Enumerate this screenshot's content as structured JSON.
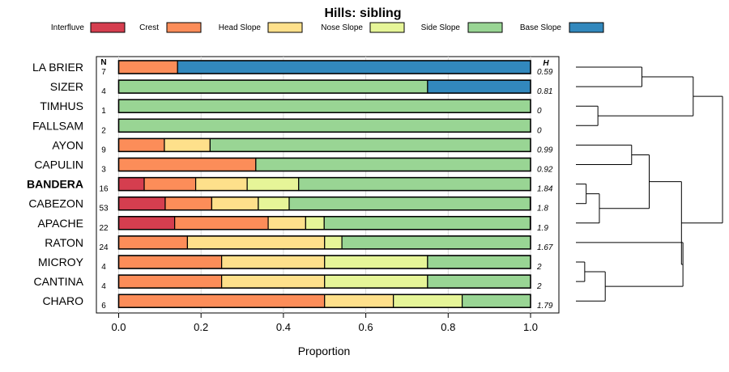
{
  "chart_data": {
    "type": "bar",
    "orientation": "horizontal",
    "stacked": true,
    "title": "Hills: sibling",
    "xlabel": "Proportion",
    "ylabel": "",
    "xlim": [
      0,
      1
    ],
    "x_ticks": [
      "0.0",
      "0.2",
      "0.4",
      "0.6",
      "0.8",
      "1.0"
    ],
    "n_header": "N",
    "h_header": "H",
    "legend_position": "top",
    "series": [
      {
        "name": "Interfluve",
        "color": "#D53E4F"
      },
      {
        "name": "Crest",
        "color": "#FC8D59"
      },
      {
        "name": "Head Slope",
        "color": "#FEE08B"
      },
      {
        "name": "Nose Slope",
        "color": "#E6F598"
      },
      {
        "name": "Side Slope",
        "color": "#99D594"
      },
      {
        "name": "Base Slope",
        "color": "#3288BD"
      }
    ],
    "rows": [
      {
        "label": "LA BRIER",
        "bold": false,
        "n": "7",
        "h": "0.59",
        "values": [
          0,
          0.143,
          0,
          0,
          0,
          0.857
        ]
      },
      {
        "label": "SIZER",
        "bold": false,
        "n": "4",
        "h": "0.81",
        "values": [
          0,
          0,
          0,
          0,
          0.75,
          0.25
        ]
      },
      {
        "label": "TIMHUS",
        "bold": false,
        "n": "1",
        "h": "0",
        "values": [
          0,
          0,
          0,
          0,
          1,
          0
        ]
      },
      {
        "label": "FALLSAM",
        "bold": false,
        "n": "2",
        "h": "0",
        "values": [
          0,
          0,
          0,
          0,
          1,
          0
        ]
      },
      {
        "label": "AYON",
        "bold": false,
        "n": "9",
        "h": "0.99",
        "values": [
          0,
          0.111,
          0.111,
          0,
          0.778,
          0
        ]
      },
      {
        "label": "CAPULIN",
        "bold": false,
        "n": "3",
        "h": "0.92",
        "values": [
          0,
          0.333,
          0,
          0,
          0.667,
          0
        ]
      },
      {
        "label": "BANDERA",
        "bold": true,
        "n": "16",
        "h": "1.84",
        "values": [
          0.062,
          0.125,
          0.125,
          0.125,
          0.563,
          0
        ]
      },
      {
        "label": "CABEZON",
        "bold": false,
        "n": "53",
        "h": "1.8",
        "values": [
          0.113,
          0.113,
          0.113,
          0.075,
          0.585,
          0
        ]
      },
      {
        "label": "APACHE",
        "bold": false,
        "n": "22",
        "h": "1.9",
        "values": [
          0.136,
          0.227,
          0.091,
          0.045,
          0.5,
          0
        ]
      },
      {
        "label": "RATON",
        "bold": false,
        "n": "24",
        "h": "1.67",
        "values": [
          0,
          0.167,
          0.333,
          0.042,
          0.458,
          0
        ]
      },
      {
        "label": "MICROY",
        "bold": false,
        "n": "4",
        "h": "2",
        "values": [
          0,
          0.25,
          0.25,
          0.25,
          0.25,
          0
        ]
      },
      {
        "label": "CANTINA",
        "bold": false,
        "n": "4",
        "h": "2",
        "values": [
          0,
          0.25,
          0.25,
          0.25,
          0.25,
          0
        ]
      },
      {
        "label": "CHARO",
        "bold": false,
        "n": "6",
        "h": "1.79",
        "values": [
          0,
          0.5,
          0.167,
          0.167,
          0.166,
          0
        ]
      }
    ],
    "dendrogram": {
      "note": "hierarchical clustering of rows (leaf indices refer to rows)",
      "tree": [
        [
          [
            0,
            1
          ],
          [
            2,
            3
          ]
        ],
        [
          [
            [
              4,
              5
            ],
            [
              [
                6,
                7
              ],
              8
            ]
          ],
          [
            9,
            [
              [
                10,
                11
              ],
              12
            ]
          ]
        ]
      ],
      "heights": {
        "root": 1.0,
        "group_top": 0.8,
        "pair_0_1": 0.45,
        "pair_2_3": 0.15,
        "group_bottom": 0.72,
        "sub_4_8": 0.5,
        "pair_4_5": 0.38,
        "sub_6_8": 0.16,
        "pair_6_7": 0.07,
        "sub_9_12": 0.73,
        "sub_10_12": 0.2,
        "pair_10_11": 0.06
      }
    }
  }
}
